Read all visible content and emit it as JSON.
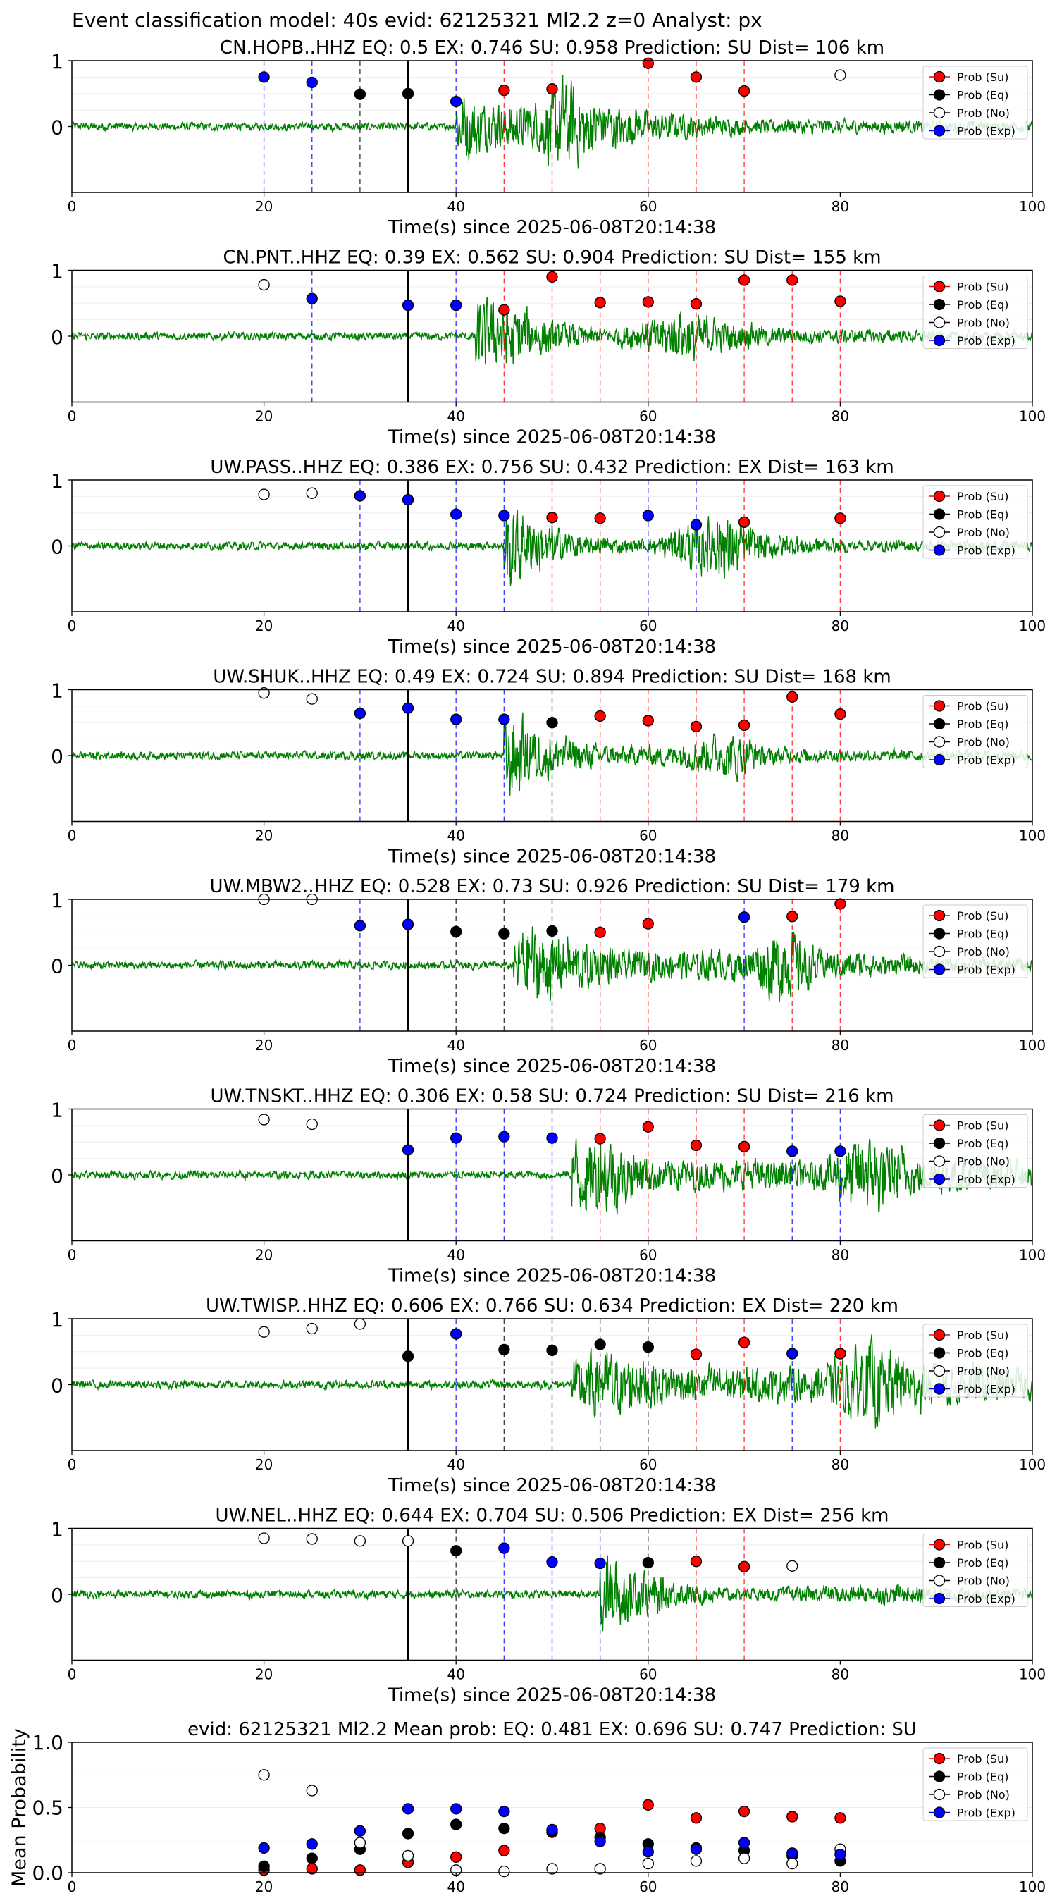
{
  "suptitle": "Event classification model: 40s evid: 62125321 Ml2.2 z=0 Analyst: px",
  "legend_labels": [
    "Prob (Su)",
    "Prob (Eq)",
    "Prob (No)",
    "Prob (Exp)"
  ],
  "colors": {
    "su": "#ff0000",
    "eq": "#000000",
    "no": "#ffffff",
    "exp": "#0000ff",
    "waveform": "#008000",
    "pick_line": "#000000"
  },
  "chart_data": [
    {
      "type": "scatter",
      "station": "CN.HOPB..HHZ",
      "title": "CN.HOPB..HHZ   EQ: 0.5  EX: 0.746  SU: 0.958   Prediction: SU    Dist= 106 km",
      "xlabel": "Time(s) since 2025-06-08T20:14:38",
      "xlim": [
        0,
        100
      ],
      "ylim": [
        -1,
        1
      ],
      "xticks": [
        "0",
        "20",
        "40",
        "60",
        "80",
        "100"
      ],
      "yticks": [
        "1",
        "0"
      ],
      "pick_time": 35,
      "envelope": [
        [
          40,
          0.7
        ],
        [
          43,
          0.5
        ],
        [
          48,
          0.45
        ],
        [
          51,
          0.95
        ],
        [
          55,
          0.5
        ],
        [
          60,
          0.3
        ],
        [
          70,
          0.15
        ],
        [
          80,
          0.15
        ],
        [
          90,
          0.12
        ],
        [
          100,
          0.12
        ]
      ],
      "points": [
        {
          "x": 20,
          "y": 0.75,
          "cls": "exp"
        },
        {
          "x": 25,
          "y": 0.67,
          "cls": "exp"
        },
        {
          "x": 30,
          "y": 0.49,
          "cls": "eq"
        },
        {
          "x": 35,
          "y": 0.5,
          "cls": "eq"
        },
        {
          "x": 40,
          "y": 0.38,
          "cls": "exp"
        },
        {
          "x": 45,
          "y": 0.55,
          "cls": "su"
        },
        {
          "x": 50,
          "y": 0.57,
          "cls": "su"
        },
        {
          "x": 60,
          "y": 0.96,
          "cls": "su"
        },
        {
          "x": 65,
          "y": 0.75,
          "cls": "su"
        },
        {
          "x": 70,
          "y": 0.54,
          "cls": "su"
        },
        {
          "x": 80,
          "y": 0.78,
          "cls": "no"
        }
      ]
    },
    {
      "type": "scatter",
      "station": "CN.PNT..HHZ",
      "title": "CN.PNT..HHZ   EQ: 0.39  EX: 0.562  SU: 0.904   Prediction: SU    Dist= 155 km",
      "xlabel": "Time(s) since 2025-06-08T20:14:38",
      "xlim": [
        0,
        100
      ],
      "ylim": [
        -1,
        1
      ],
      "xticks": [
        "0",
        "20",
        "40",
        "60",
        "80",
        "100"
      ],
      "yticks": [
        "1",
        "0"
      ],
      "pick_time": 35,
      "envelope": [
        [
          42,
          0.8
        ],
        [
          45,
          0.7
        ],
        [
          50,
          0.3
        ],
        [
          56,
          0.15
        ],
        [
          64,
          0.55
        ],
        [
          68,
          0.3
        ],
        [
          75,
          0.15
        ],
        [
          90,
          0.12
        ],
        [
          100,
          0.1
        ]
      ],
      "points": [
        {
          "x": 20,
          "y": 0.78,
          "cls": "no"
        },
        {
          "x": 25,
          "y": 0.57,
          "cls": "exp"
        },
        {
          "x": 35,
          "y": 0.47,
          "cls": "exp"
        },
        {
          "x": 40,
          "y": 0.47,
          "cls": "exp"
        },
        {
          "x": 45,
          "y": 0.4,
          "cls": "su"
        },
        {
          "x": 50,
          "y": 0.9,
          "cls": "su"
        },
        {
          "x": 55,
          "y": 0.51,
          "cls": "su"
        },
        {
          "x": 60,
          "y": 0.52,
          "cls": "su"
        },
        {
          "x": 65,
          "y": 0.49,
          "cls": "su"
        },
        {
          "x": 70,
          "y": 0.85,
          "cls": "su"
        },
        {
          "x": 75,
          "y": 0.85,
          "cls": "su"
        },
        {
          "x": 80,
          "y": 0.53,
          "cls": "su"
        }
      ]
    },
    {
      "type": "scatter",
      "station": "UW.PASS..HHZ",
      "title": "UW.PASS..HHZ   EQ: 0.386  EX: 0.756  SU: 0.432   Prediction: EX    Dist= 163 km",
      "xlabel": "Time(s) since 2025-06-08T20:14:38",
      "xlim": [
        0,
        100
      ],
      "ylim": [
        -1,
        1
      ],
      "xticks": [
        "0",
        "20",
        "40",
        "60",
        "80",
        "100"
      ],
      "yticks": [
        "1",
        "0"
      ],
      "pick_time": 35,
      "envelope": [
        [
          45,
          0.9
        ],
        [
          48,
          0.6
        ],
        [
          53,
          0.2
        ],
        [
          60,
          0.12
        ],
        [
          68,
          0.8
        ],
        [
          71,
          0.3
        ],
        [
          80,
          0.12
        ],
        [
          100,
          0.1
        ]
      ],
      "points": [
        {
          "x": 20,
          "y": 0.78,
          "cls": "no"
        },
        {
          "x": 25,
          "y": 0.8,
          "cls": "no"
        },
        {
          "x": 30,
          "y": 0.76,
          "cls": "exp"
        },
        {
          "x": 35,
          "y": 0.7,
          "cls": "exp"
        },
        {
          "x": 40,
          "y": 0.48,
          "cls": "exp"
        },
        {
          "x": 45,
          "y": 0.46,
          "cls": "exp"
        },
        {
          "x": 50,
          "y": 0.43,
          "cls": "su"
        },
        {
          "x": 55,
          "y": 0.42,
          "cls": "su"
        },
        {
          "x": 60,
          "y": 0.46,
          "cls": "exp"
        },
        {
          "x": 65,
          "y": 0.32,
          "cls": "exp"
        },
        {
          "x": 70,
          "y": 0.36,
          "cls": "su"
        },
        {
          "x": 80,
          "y": 0.42,
          "cls": "su"
        }
      ]
    },
    {
      "type": "scatter",
      "station": "UW.SHUK..HHZ",
      "title": "UW.SHUK..HHZ   EQ: 0.49  EX: 0.724  SU: 0.894   Prediction: SU    Dist= 168 km",
      "xlabel": "Time(s) since 2025-06-08T20:14:38",
      "xlim": [
        0,
        100
      ],
      "ylim": [
        -1,
        1
      ],
      "xticks": [
        "0",
        "20",
        "40",
        "60",
        "80",
        "100"
      ],
      "yticks": [
        "1",
        "0"
      ],
      "pick_time": 35,
      "envelope": [
        [
          45,
          0.9
        ],
        [
          49,
          0.5
        ],
        [
          55,
          0.2
        ],
        [
          62,
          0.2
        ],
        [
          69,
          0.5
        ],
        [
          72,
          0.2
        ],
        [
          80,
          0.12
        ],
        [
          100,
          0.1
        ]
      ],
      "points": [
        {
          "x": 20,
          "y": 0.95,
          "cls": "no"
        },
        {
          "x": 25,
          "y": 0.86,
          "cls": "no"
        },
        {
          "x": 30,
          "y": 0.64,
          "cls": "exp"
        },
        {
          "x": 35,
          "y": 0.72,
          "cls": "exp"
        },
        {
          "x": 40,
          "y": 0.55,
          "cls": "exp"
        },
        {
          "x": 45,
          "y": 0.55,
          "cls": "exp"
        },
        {
          "x": 50,
          "y": 0.5,
          "cls": "eq"
        },
        {
          "x": 55,
          "y": 0.6,
          "cls": "su"
        },
        {
          "x": 60,
          "y": 0.53,
          "cls": "su"
        },
        {
          "x": 65,
          "y": 0.44,
          "cls": "su"
        },
        {
          "x": 70,
          "y": 0.46,
          "cls": "su"
        },
        {
          "x": 75,
          "y": 0.89,
          "cls": "su"
        },
        {
          "x": 80,
          "y": 0.63,
          "cls": "su"
        }
      ]
    },
    {
      "type": "scatter",
      "station": "UW.MBW2..HHZ",
      "title": "UW.MBW2..HHZ   EQ: 0.528  EX: 0.73  SU: 0.926   Prediction: SU    Dist= 179 km",
      "xlabel": "Time(s) since 2025-06-08T20:14:38",
      "xlim": [
        0,
        100
      ],
      "ylim": [
        -1,
        1
      ],
      "xticks": [
        "0",
        "20",
        "40",
        "60",
        "80",
        "100"
      ],
      "yticks": [
        "1",
        "0"
      ],
      "pick_time": 35,
      "envelope": [
        [
          46,
          0.5
        ],
        [
          48,
          0.9
        ],
        [
          52,
          0.5
        ],
        [
          58,
          0.3
        ],
        [
          70,
          0.3
        ],
        [
          74,
          0.8
        ],
        [
          78,
          0.3
        ],
        [
          90,
          0.15
        ],
        [
          100,
          0.15
        ]
      ],
      "points": [
        {
          "x": 20,
          "y": 1.0,
          "cls": "no"
        },
        {
          "x": 25,
          "y": 1.0,
          "cls": "no"
        },
        {
          "x": 30,
          "y": 0.6,
          "cls": "exp"
        },
        {
          "x": 35,
          "y": 0.62,
          "cls": "exp"
        },
        {
          "x": 40,
          "y": 0.51,
          "cls": "eq"
        },
        {
          "x": 45,
          "y": 0.48,
          "cls": "eq"
        },
        {
          "x": 50,
          "y": 0.52,
          "cls": "eq"
        },
        {
          "x": 55,
          "y": 0.5,
          "cls": "su"
        },
        {
          "x": 60,
          "y": 0.63,
          "cls": "su"
        },
        {
          "x": 70,
          "y": 0.73,
          "cls": "exp"
        },
        {
          "x": 75,
          "y": 0.74,
          "cls": "su"
        },
        {
          "x": 80,
          "y": 0.93,
          "cls": "su"
        }
      ]
    },
    {
      "type": "scatter",
      "station": "UW.TNSKT..HHZ",
      "title": "UW.TNSKT..HHZ   EQ: 0.306  EX: 0.58  SU: 0.724   Prediction: SU    Dist= 216 km",
      "xlabel": "Time(s) since 2025-06-08T20:14:38",
      "xlim": [
        0,
        100
      ],
      "ylim": [
        -1,
        1
      ],
      "xticks": [
        "0",
        "20",
        "40",
        "60",
        "80",
        "100"
      ],
      "yticks": [
        "1",
        "0"
      ],
      "pick_time": 35,
      "envelope": [
        [
          52,
          0.8
        ],
        [
          56,
          0.8
        ],
        [
          60,
          0.35
        ],
        [
          70,
          0.3
        ],
        [
          78,
          0.3
        ],
        [
          83,
          0.9
        ],
        [
          88,
          0.4
        ],
        [
          100,
          0.25
        ]
      ],
      "points": [
        {
          "x": 20,
          "y": 0.84,
          "cls": "no"
        },
        {
          "x": 25,
          "y": 0.77,
          "cls": "no"
        },
        {
          "x": 35,
          "y": 0.38,
          "cls": "exp"
        },
        {
          "x": 40,
          "y": 0.56,
          "cls": "exp"
        },
        {
          "x": 45,
          "y": 0.58,
          "cls": "exp"
        },
        {
          "x": 50,
          "y": 0.56,
          "cls": "exp"
        },
        {
          "x": 55,
          "y": 0.55,
          "cls": "su"
        },
        {
          "x": 60,
          "y": 0.73,
          "cls": "su"
        },
        {
          "x": 65,
          "y": 0.45,
          "cls": "su"
        },
        {
          "x": 70,
          "y": 0.43,
          "cls": "su"
        },
        {
          "x": 75,
          "y": 0.36,
          "cls": "exp"
        },
        {
          "x": 80,
          "y": 0.36,
          "cls": "exp"
        }
      ]
    },
    {
      "type": "scatter",
      "station": "UW.TWISP..HHZ",
      "title": "UW.TWISP..HHZ   EQ: 0.606  EX: 0.766  SU: 0.634   Prediction: EX    Dist= 220 km",
      "xlabel": "Time(s) since 2025-06-08T20:14:38",
      "xlim": [
        0,
        100
      ],
      "ylim": [
        -1,
        1
      ],
      "xticks": [
        "0",
        "20",
        "40",
        "60",
        "80",
        "100"
      ],
      "yticks": [
        "1",
        "0"
      ],
      "pick_time": 35,
      "envelope": [
        [
          52,
          0.6
        ],
        [
          56,
          0.7
        ],
        [
          62,
          0.4
        ],
        [
          70,
          0.35
        ],
        [
          78,
          0.35
        ],
        [
          83,
          0.9
        ],
        [
          88,
          0.5
        ],
        [
          100,
          0.3
        ]
      ],
      "points": [
        {
          "x": 20,
          "y": 0.8,
          "cls": "no"
        },
        {
          "x": 25,
          "y": 0.85,
          "cls": "no"
        },
        {
          "x": 30,
          "y": 0.92,
          "cls": "no"
        },
        {
          "x": 35,
          "y": 0.43,
          "cls": "eq"
        },
        {
          "x": 40,
          "y": 0.77,
          "cls": "exp"
        },
        {
          "x": 45,
          "y": 0.53,
          "cls": "eq"
        },
        {
          "x": 50,
          "y": 0.52,
          "cls": "eq"
        },
        {
          "x": 55,
          "y": 0.61,
          "cls": "eq"
        },
        {
          "x": 60,
          "y": 0.57,
          "cls": "eq"
        },
        {
          "x": 65,
          "y": 0.46,
          "cls": "su"
        },
        {
          "x": 70,
          "y": 0.64,
          "cls": "su"
        },
        {
          "x": 75,
          "y": 0.47,
          "cls": "exp"
        },
        {
          "x": 80,
          "y": 0.47,
          "cls": "su"
        }
      ]
    },
    {
      "type": "scatter",
      "station": "UW.NEL..HHZ",
      "title": "UW.NEL..HHZ   EQ: 0.644  EX: 0.704  SU: 0.506   Prediction: EX    Dist= 256 km",
      "xlabel": "Time(s) since 2025-06-08T20:14:38",
      "xlim": [
        0,
        100
      ],
      "ylim": [
        -1,
        1
      ],
      "xticks": [
        "0",
        "20",
        "40",
        "60",
        "80",
        "100"
      ],
      "yticks": [
        "1",
        "0"
      ],
      "pick_time": 35,
      "envelope": [
        [
          55,
          0.85
        ],
        [
          58,
          0.6
        ],
        [
          63,
          0.25
        ],
        [
          70,
          0.12
        ],
        [
          85,
          0.2
        ],
        [
          95,
          0.12
        ],
        [
          100,
          0.1
        ]
      ],
      "points": [
        {
          "x": 20,
          "y": 0.85,
          "cls": "no"
        },
        {
          "x": 25,
          "y": 0.84,
          "cls": "no"
        },
        {
          "x": 30,
          "y": 0.81,
          "cls": "no"
        },
        {
          "x": 35,
          "y": 0.81,
          "cls": "no"
        },
        {
          "x": 40,
          "y": 0.66,
          "cls": "eq"
        },
        {
          "x": 45,
          "y": 0.7,
          "cls": "exp"
        },
        {
          "x": 50,
          "y": 0.49,
          "cls": "exp"
        },
        {
          "x": 55,
          "y": 0.47,
          "cls": "exp"
        },
        {
          "x": 60,
          "y": 0.48,
          "cls": "eq"
        },
        {
          "x": 65,
          "y": 0.5,
          "cls": "su"
        },
        {
          "x": 70,
          "y": 0.42,
          "cls": "su"
        },
        {
          "x": 75,
          "y": 0.43,
          "cls": "no"
        }
      ]
    },
    {
      "type": "scatter",
      "station": "mean",
      "title": "evid: 62125321  Ml2.2   Mean prob:   EQ: 0.481  EX: 0.696  SU: 0.747   Prediction: SU",
      "xlabel": "",
      "ylabel": "Mean Probability",
      "xlim": [
        0,
        100
      ],
      "ylim": [
        0,
        1
      ],
      "xticks": [
        "0",
        "20",
        "40",
        "60",
        "80",
        "100"
      ],
      "yticks": [
        "1.0",
        "0.5",
        "0.0"
      ],
      "series": [
        {
          "name": "Prob (Su)",
          "x": [
            20,
            25,
            30,
            35,
            40,
            45,
            50,
            55,
            60,
            65,
            70,
            75,
            80
          ],
          "values": [
            0.02,
            0.03,
            0.02,
            0.08,
            0.12,
            0.17,
            0.31,
            0.34,
            0.52,
            0.42,
            0.47,
            0.43,
            0.42
          ]
        },
        {
          "name": "Prob (Eq)",
          "x": [
            20,
            25,
            30,
            35,
            40,
            45,
            50,
            55,
            60,
            65,
            70,
            75,
            80
          ],
          "values": [
            0.05,
            0.11,
            0.18,
            0.3,
            0.37,
            0.34,
            0.32,
            0.27,
            0.22,
            0.19,
            0.17,
            0.13,
            0.09
          ]
        },
        {
          "name": "Prob (No)",
          "x": [
            20,
            25,
            30,
            35,
            40,
            45,
            50,
            55,
            60,
            65,
            70,
            75,
            80
          ],
          "values": [
            0.75,
            0.63,
            0.23,
            0.13,
            0.02,
            0.01,
            0.03,
            0.03,
            0.07,
            0.09,
            0.11,
            0.07,
            0.18
          ]
        },
        {
          "name": "Prob (Exp)",
          "x": [
            20,
            25,
            30,
            35,
            40,
            45,
            50,
            55,
            60,
            65,
            70,
            75,
            80
          ],
          "values": [
            0.19,
            0.22,
            0.32,
            0.49,
            0.49,
            0.47,
            0.33,
            0.24,
            0.16,
            0.18,
            0.23,
            0.15,
            0.14
          ]
        }
      ]
    }
  ]
}
